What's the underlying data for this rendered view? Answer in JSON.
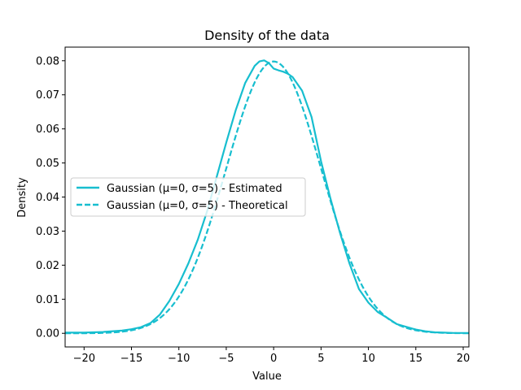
{
  "chart_data": {
    "type": "line",
    "title": "Density of the data",
    "xlabel": "Value",
    "ylabel": "Density",
    "xlim": [
      -22,
      20.6
    ],
    "ylim": [
      -0.004,
      0.084
    ],
    "xticks": [
      -20,
      -15,
      -10,
      -5,
      0,
      5,
      10,
      15,
      20
    ],
    "yticks": [
      0.0,
      0.01,
      0.02,
      0.03,
      0.04,
      0.05,
      0.06,
      0.07,
      0.08
    ],
    "xtick_labels": [
      "−20",
      "−15",
      "−10",
      "−5",
      "0",
      "5",
      "10",
      "15",
      "20"
    ],
    "ytick_labels": [
      "0.00",
      "0.01",
      "0.02",
      "0.03",
      "0.04",
      "0.05",
      "0.06",
      "0.07",
      "0.08"
    ],
    "grid": false,
    "legend_position": "center-left",
    "color": "#17becf",
    "series": [
      {
        "name": "Gaussian (μ=0, σ=5) - Estimated",
        "style": "solid",
        "x": [
          -22,
          -20,
          -18,
          -16,
          -15,
          -14,
          -13,
          -12,
          -11,
          -10,
          -9,
          -8,
          -7,
          -6,
          -5,
          -4,
          -3,
          -2,
          -1.5,
          -1,
          -0.5,
          0,
          0.5,
          1,
          1.5,
          2,
          3,
          4,
          5,
          6,
          7,
          8,
          9,
          10,
          11,
          12,
          13,
          14,
          15,
          16,
          17,
          18,
          19,
          20.6
        ],
        "y": [
          0.0002,
          0.0002,
          0.0004,
          0.0008,
          0.0012,
          0.0018,
          0.003,
          0.0055,
          0.0095,
          0.0145,
          0.0205,
          0.0275,
          0.036,
          0.046,
          0.056,
          0.0655,
          0.0735,
          0.0785,
          0.0798,
          0.0801,
          0.0793,
          0.0777,
          0.0772,
          0.0768,
          0.0762,
          0.0752,
          0.0712,
          0.0635,
          0.0505,
          0.0395,
          0.0295,
          0.0205,
          0.013,
          0.009,
          0.0062,
          0.0045,
          0.0027,
          0.0019,
          0.0011,
          0.0006,
          0.0003,
          0.0002,
          0.0001,
          0.0001
        ]
      },
      {
        "name": "Gaussian (μ=0, σ=5) - Theoretical",
        "style": "dashed",
        "gaussian": {
          "mu": 0,
          "sigma": 5
        }
      }
    ]
  }
}
